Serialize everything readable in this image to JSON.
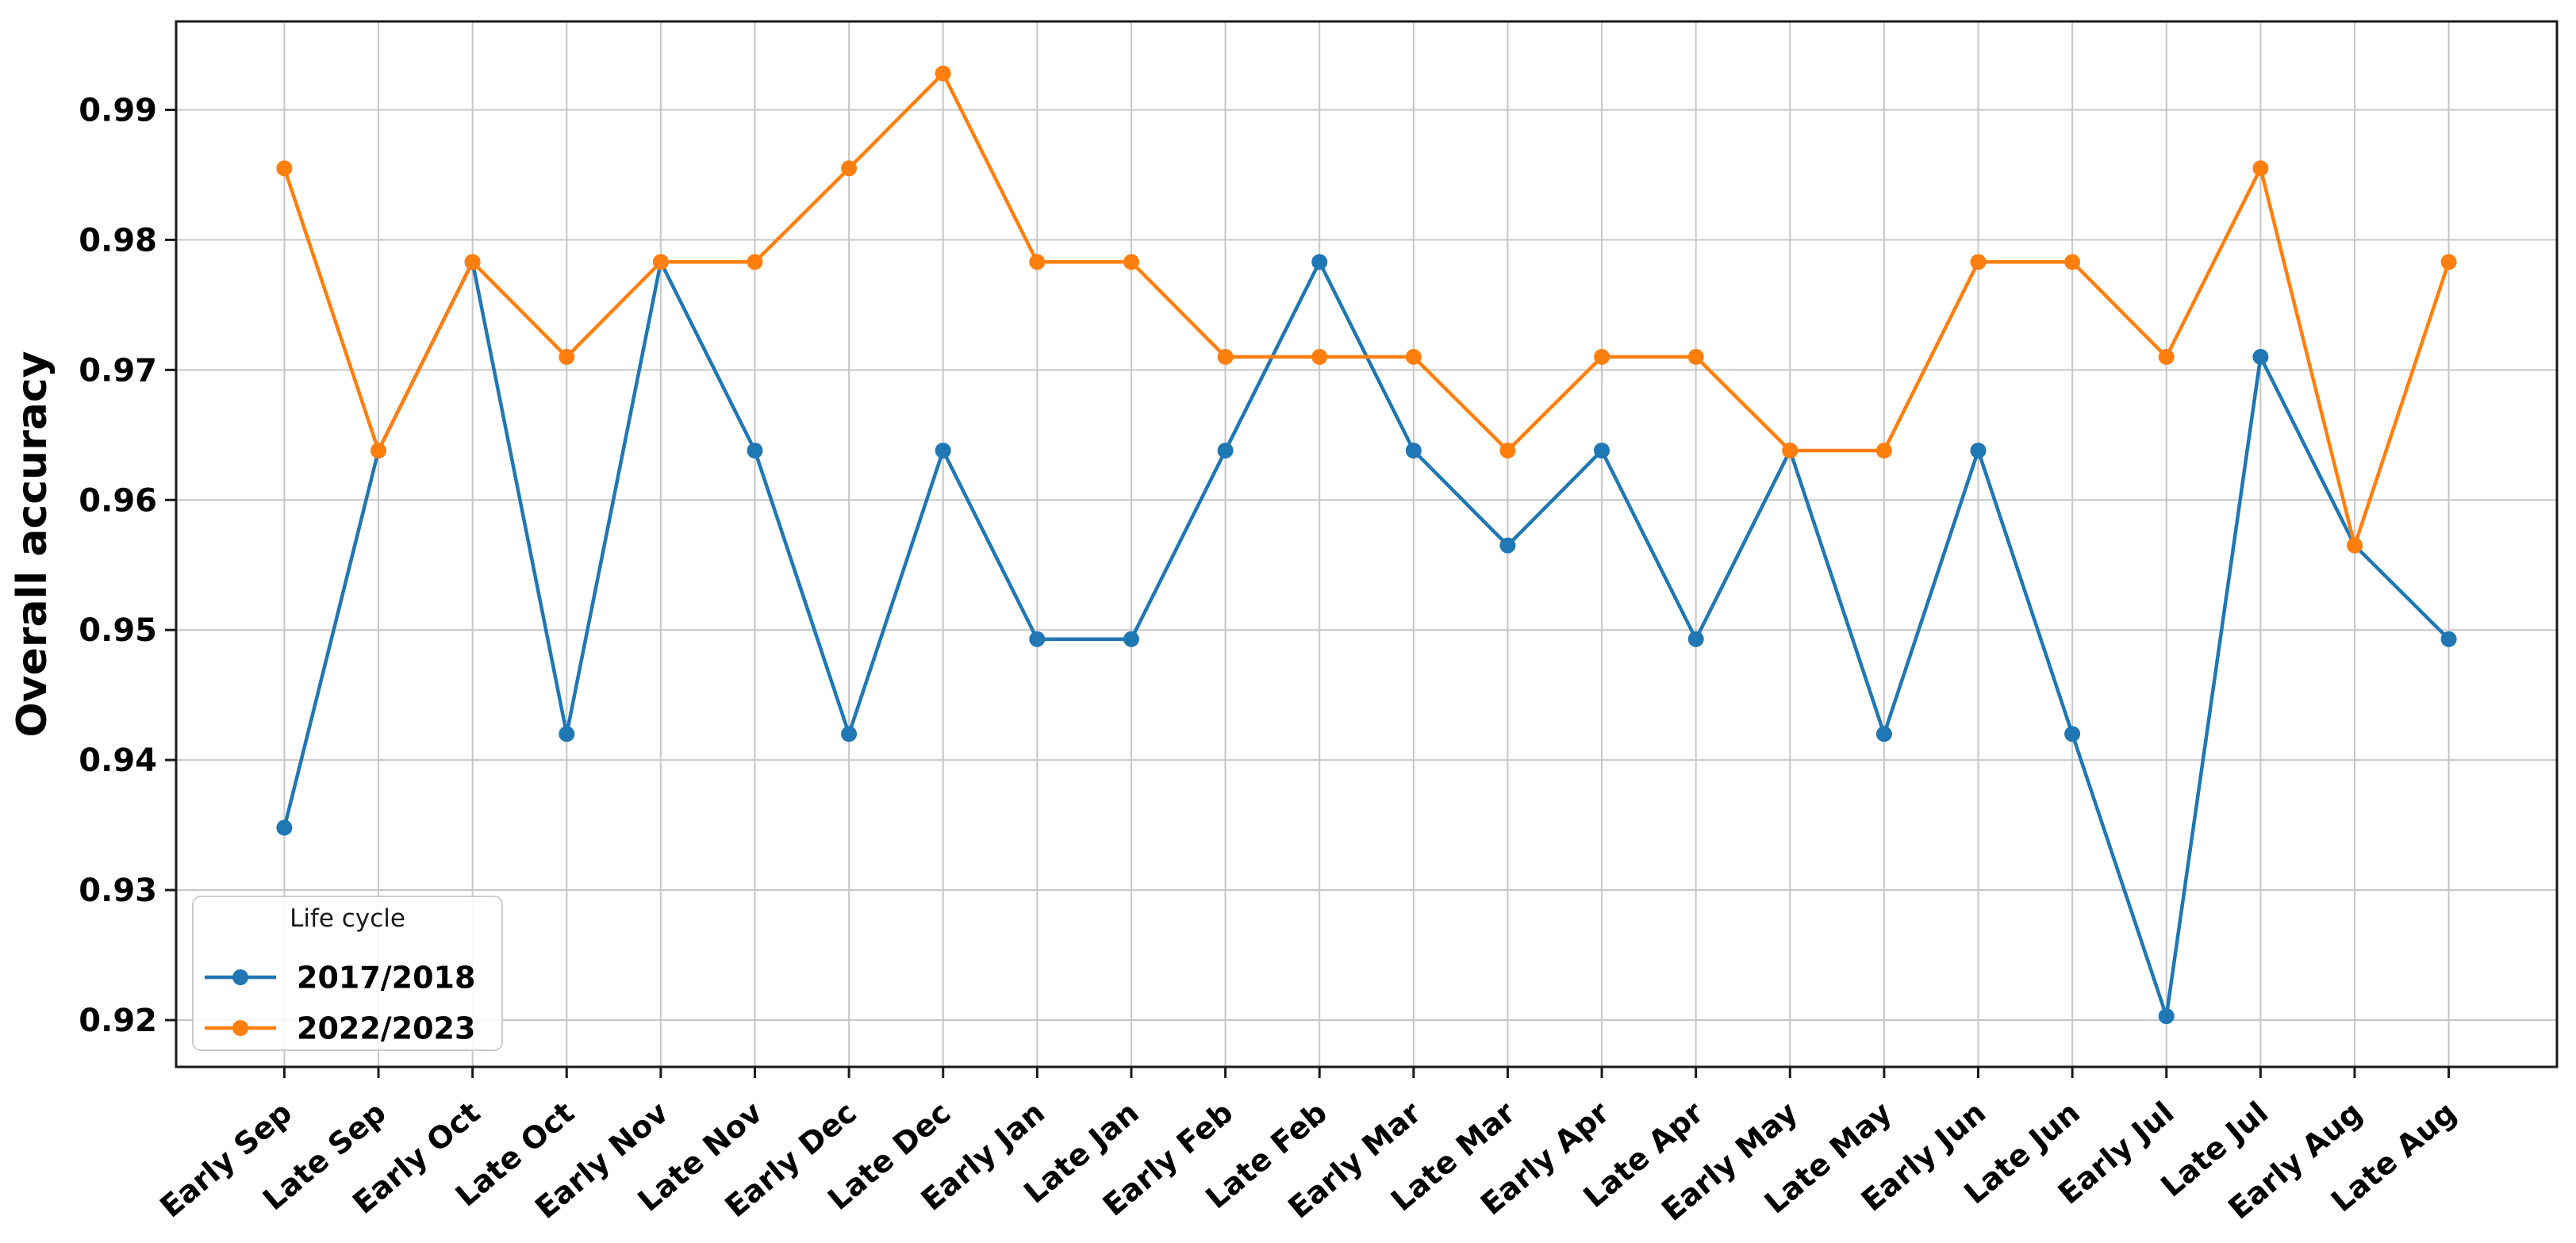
{
  "chart_data": {
    "type": "line",
    "title": "",
    "xlabel": "",
    "ylabel": "Overall accuracy",
    "categories": [
      "Early Sep",
      "Late Sep",
      "Early Oct",
      "Late Oct",
      "Early Nov",
      "Late Nov",
      "Early Dec",
      "Late Dec",
      "Early Jan",
      "Late Jan",
      "Early Feb",
      "Late Feb",
      "Early Mar",
      "Late Mar",
      "Early Apr",
      "Late Apr",
      "Early May",
      "Late May",
      "Early Jun",
      "Late Jun",
      "Early Jul",
      "Late Jul",
      "Early Aug",
      "Late Aug"
    ],
    "series": [
      {
        "name": "2017/2018",
        "color": "#1f77b4",
        "values": [
          0.9348,
          0.9638,
          0.9783,
          0.942,
          0.9783,
          0.9638,
          0.942,
          0.9638,
          0.9493,
          0.9493,
          0.9638,
          0.9783,
          0.9638,
          0.9565,
          0.9638,
          0.9493,
          0.9638,
          0.942,
          0.9638,
          0.942,
          0.9203,
          0.971,
          0.9565,
          0.9493
        ]
      },
      {
        "name": "2022/2023",
        "color": "#ff7f0e",
        "values": [
          0.9855,
          0.9638,
          0.9783,
          0.971,
          0.9783,
          0.9783,
          0.9855,
          0.9928,
          0.9783,
          0.9783,
          0.971,
          0.971,
          0.971,
          0.9638,
          0.971,
          0.971,
          0.9638,
          0.9638,
          0.9783,
          0.9783,
          0.971,
          0.9855,
          0.9565,
          0.9783
        ]
      }
    ],
    "yticks": [
      0.92,
      0.93,
      0.94,
      0.95,
      0.96,
      0.97,
      0.98,
      0.99
    ],
    "ytick_labels": [
      "0.92",
      "0.93",
      "0.94",
      "0.95",
      "0.96",
      "0.97",
      "0.98",
      "0.99"
    ],
    "ylim": [
      0.9164,
      0.9968
    ],
    "grid": true,
    "legend": {
      "title": "Life cycle",
      "entries": [
        "2017/2018",
        "2022/2023"
      ],
      "position": "lower left"
    }
  },
  "colors": {
    "grid": "#c6c6c6",
    "spine": "#1a1a1a",
    "text": "#000000",
    "legend_border": "#cccccc",
    "background": "#ffffff"
  }
}
